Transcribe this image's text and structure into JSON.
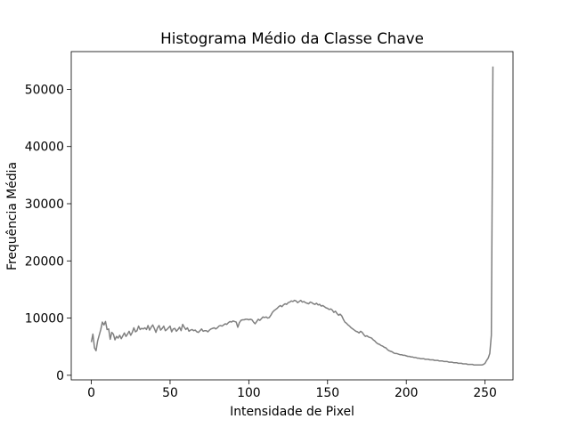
{
  "chart_data": {
    "type": "line",
    "title": "Histograma Médio da Classe Chave",
    "xlabel": "Intensidade de Pixel",
    "ylabel": "Frequência Média",
    "color": "#808080",
    "x": [
      0,
      1,
      2,
      3,
      4,
      5,
      6,
      7,
      8,
      9,
      10,
      11,
      12,
      13,
      14,
      15,
      16,
      17,
      18,
      19,
      20,
      21,
      22,
      23,
      24,
      25,
      26,
      27,
      28,
      29,
      30,
      31,
      32,
      33,
      34,
      35,
      36,
      37,
      38,
      39,
      40,
      41,
      42,
      43,
      44,
      45,
      46,
      47,
      48,
      49,
      50,
      51,
      52,
      53,
      54,
      55,
      56,
      57,
      58,
      59,
      60,
      61,
      62,
      63,
      64,
      65,
      66,
      67,
      68,
      69,
      70,
      71,
      72,
      73,
      74,
      75,
      76,
      77,
      78,
      79,
      80,
      81,
      82,
      83,
      84,
      85,
      86,
      87,
      88,
      89,
      90,
      91,
      92,
      93,
      94,
      95,
      96,
      97,
      98,
      99,
      100,
      101,
      102,
      103,
      104,
      105,
      106,
      107,
      108,
      109,
      110,
      111,
      112,
      113,
      114,
      115,
      116,
      117,
      118,
      119,
      120,
      121,
      122,
      123,
      124,
      125,
      126,
      127,
      128,
      129,
      130,
      131,
      132,
      133,
      134,
      135,
      136,
      137,
      138,
      139,
      140,
      141,
      142,
      143,
      144,
      145,
      146,
      147,
      148,
      149,
      150,
      151,
      152,
      153,
      154,
      155,
      156,
      157,
      158,
      159,
      160,
      161,
      162,
      163,
      164,
      165,
      166,
      167,
      168,
      169,
      170,
      171,
      172,
      173,
      174,
      175,
      176,
      177,
      178,
      179,
      180,
      181,
      182,
      183,
      184,
      185,
      186,
      187,
      188,
      189,
      190,
      191,
      192,
      193,
      194,
      195,
      196,
      197,
      198,
      199,
      200,
      201,
      202,
      203,
      204,
      205,
      206,
      207,
      208,
      209,
      210,
      211,
      212,
      213,
      214,
      215,
      216,
      217,
      218,
      219,
      220,
      221,
      222,
      223,
      224,
      225,
      226,
      227,
      228,
      229,
      230,
      231,
      232,
      233,
      234,
      235,
      236,
      237,
      238,
      239,
      240,
      241,
      242,
      243,
      244,
      245,
      246,
      247,
      248,
      249,
      250,
      251,
      252,
      253,
      254,
      255
    ],
    "values": [
      5800,
      7200,
      4800,
      4300,
      6000,
      7000,
      8000,
      9300,
      8800,
      9400,
      8000,
      8100,
      6300,
      7500,
      7200,
      6200,
      6800,
      6500,
      7000,
      6400,
      6900,
      7400,
      6800,
      7200,
      7700,
      7000,
      7500,
      8300,
      7600,
      7800,
      8600,
      8000,
      8200,
      8100,
      8300,
      8000,
      8700,
      7900,
      8400,
      8800,
      8200,
      7500,
      8300,
      8700,
      7900,
      8200,
      8600,
      7800,
      8000,
      8300,
      8600,
      7600,
      8100,
      8200,
      7700,
      8000,
      8400,
      7800,
      8900,
      8400,
      8000,
      8300,
      7700,
      7900,
      8000,
      7800,
      7900,
      7600,
      7500,
      7800,
      8100,
      7700,
      7800,
      7800,
      7600,
      7900,
      8100,
      8200,
      8300,
      8100,
      8300,
      8600,
      8700,
      8600,
      8800,
      9000,
      8900,
      9200,
      9400,
      9300,
      9500,
      9400,
      9300,
      8400,
      9200,
      9600,
      9700,
      9700,
      9800,
      9800,
      9700,
      9800,
      9700,
      9300,
      9000,
      9400,
      9800,
      9600,
      9900,
      10200,
      10100,
      10200,
      10000,
      10100,
      10500,
      11000,
      11300,
      11500,
      11700,
      12000,
      12200,
      12000,
      12300,
      12500,
      12400,
      12700,
      12800,
      13000,
      12900,
      13100,
      13000,
      12700,
      12900,
      13100,
      12800,
      12900,
      12700,
      12600,
      12500,
      12800,
      12700,
      12500,
      12400,
      12600,
      12300,
      12400,
      12100,
      12200,
      12000,
      11800,
      11700,
      11500,
      11600,
      11400,
      11000,
      11200,
      10800,
      10500,
      10700,
      10400,
      9800,
      9300,
      9100,
      8800,
      8600,
      8300,
      8100,
      7900,
      7700,
      7600,
      7400,
      7700,
      7500,
      7100,
      6800,
      6900,
      6700,
      6600,
      6500,
      6200,
      6000,
      5700,
      5500,
      5400,
      5200,
      5100,
      4900,
      4800,
      4500,
      4300,
      4200,
      4100,
      3900,
      3800,
      3800,
      3700,
      3600,
      3600,
      3500,
      3500,
      3400,
      3300,
      3300,
      3200,
      3200,
      3100,
      3100,
      3000,
      3000,
      2900,
      2900,
      2900,
      2800,
      2800,
      2800,
      2700,
      2700,
      2700,
      2600,
      2600,
      2600,
      2500,
      2500,
      2500,
      2400,
      2400,
      2400,
      2300,
      2300,
      2300,
      2200,
      2200,
      2200,
      2100,
      2100,
      2100,
      2000,
      2000,
      2000,
      1900,
      1900,
      1900,
      1900,
      1800,
      1800,
      1800,
      1800,
      1800,
      1800,
      1900,
      2100,
      2600,
      3000,
      3800,
      7000,
      54000
    ],
    "xlim": [
      -12.75,
      267.75
    ],
    "xticks": [
      0,
      50,
      100,
      150,
      200,
      250
    ],
    "ylim": [
      -800,
      56600
    ],
    "yticks": [
      0,
      10000,
      20000,
      30000,
      40000,
      50000
    ]
  }
}
